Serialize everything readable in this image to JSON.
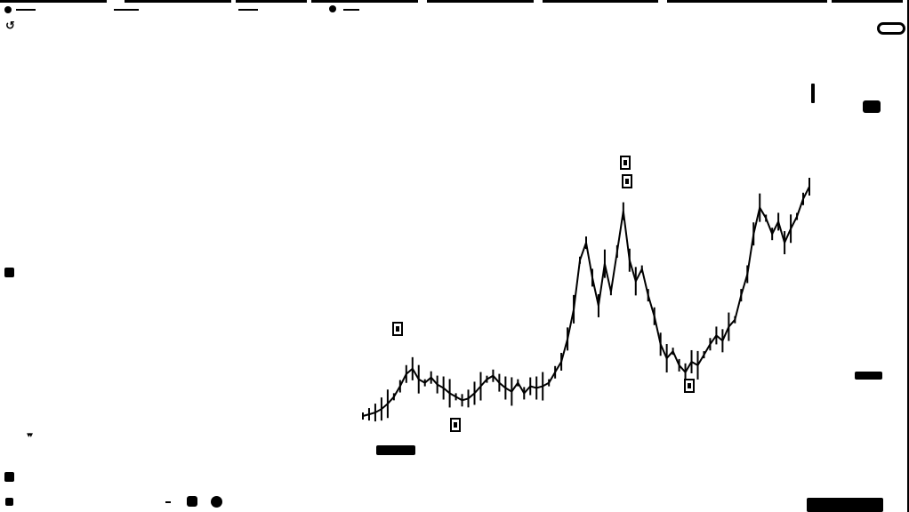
{
  "icons": {
    "refresh": "refresh-icon",
    "arrows": "double-down-arrows-icon"
  },
  "labels": {
    "rotate_glyph": "↺",
    "arrows_glyph": "▾▾"
  },
  "colors": {
    "foreground": "#000000",
    "background": "#ffffff"
  },
  "chart_data": {
    "type": "line",
    "title": "",
    "xlabel": "",
    "ylabel": "",
    "grid": false,
    "legend": "none",
    "series": [
      {
        "values": [
          0.01,
          0.02,
          0.03,
          0.05,
          0.08,
          0.12,
          0.18,
          0.25,
          0.28,
          0.22,
          0.2,
          0.23,
          0.19,
          0.17,
          0.14,
          0.12,
          0.1,
          0.11,
          0.14,
          0.18,
          0.22,
          0.24,
          0.2,
          0.17,
          0.15,
          0.2,
          0.14,
          0.18,
          0.17,
          0.18,
          0.2,
          0.26,
          0.32,
          0.45,
          0.62,
          0.9,
          1.0,
          0.8,
          0.64,
          0.88,
          0.72,
          0.95,
          1.18,
          0.9,
          0.78,
          0.85,
          0.7,
          0.58,
          0.42,
          0.34,
          0.38,
          0.3,
          0.26,
          0.32,
          0.3,
          0.36,
          0.42,
          0.47,
          0.44,
          0.52,
          0.56,
          0.7,
          0.82,
          1.05,
          1.2,
          1.14,
          1.05,
          1.12,
          1.0,
          1.08,
          1.15,
          1.25,
          1.32
        ]
      }
    ],
    "annotations": [
      {
        "x": 0.3,
        "label": ""
      },
      {
        "x": 0.45,
        "label": ""
      },
      {
        "x": 0.57,
        "label": ""
      },
      {
        "x": 0.58,
        "label": ""
      },
      {
        "x": 0.7,
        "label": ""
      }
    ]
  }
}
